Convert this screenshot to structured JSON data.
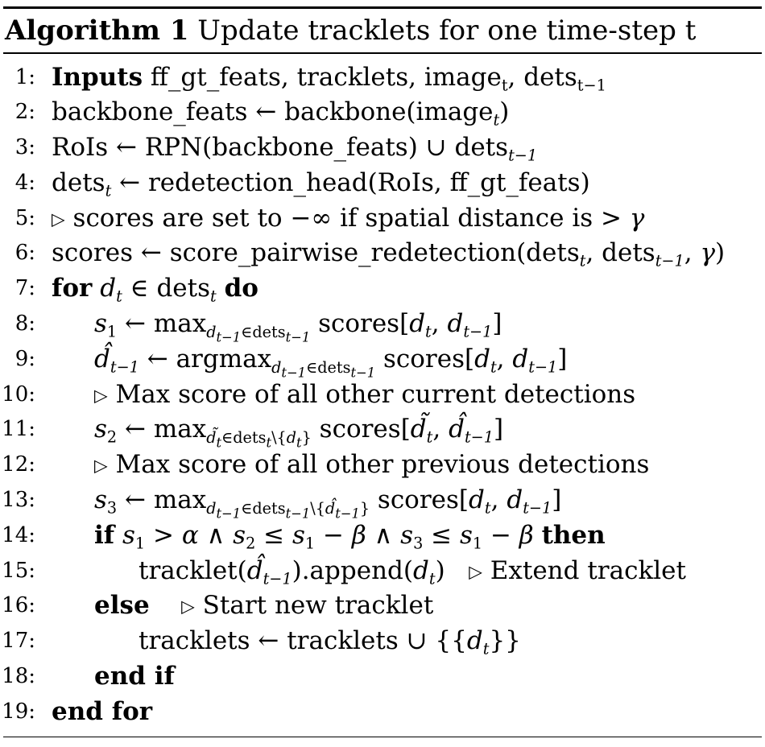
{
  "caption": {
    "label": "Algorithm 1",
    "title": "Update tracklets for one time-step t"
  },
  "lines": [
    {
      "num": "1:",
      "html": "<span class='kw'>Inputs</span> ff_gt_feats, tracklets, image<sub>t</sub>, dets<sub>t&minus;1</sub>"
    },
    {
      "num": "2:",
      "html": "backbone_feats &larr; backbone(image<sub class='m'>t</sub>)"
    },
    {
      "num": "3:",
      "html": "RoIs &larr; RPN(backbone_feats) &cup; dets<sub class='m'>t&minus;1</sub>"
    },
    {
      "num": "4:",
      "html": "dets<sub class='m'>t</sub> &larr; redetection_head(RoIs, ff_gt_feats)"
    },
    {
      "num": "5:",
      "html": "<span class='tri'>&#9655;</span> scores are set to &minus;&infin; if spatial distance is &gt; <span class='m'>&gamma;</span>"
    },
    {
      "num": "6:",
      "html": "scores &larr; score_pairwise_redetection(dets<sub class='m'>t</sub>, dets<sub class='m'>t&minus;1</sub>, <span class='m'>&gamma;</span>)"
    },
    {
      "num": "7:",
      "html": "<span class='kw'>for</span> <span class='m'>d<sub>t</sub></span> &isin; dets<sub class='m'>t</sub> <span class='kw'>do</span>"
    },
    {
      "num": "8:",
      "html": "<span class='m'>s</span><sub>1</sub> &larr; max<sub><span class='m'>d<sub>t&minus;1</sub></span>&isin;dets<sub class='m'>t&minus;1</sub></sub> scores[<span class='m'>d<sub>t</sub></span>, <span class='m'>d<sub>t&minus;1</sub></span>]"
    },
    {
      "num": "9:",
      "html": "<span class='m'>d&#770;<sub>t&minus;1</sub></span> &larr; argmax<sub><span class='m'>d<sub>t&minus;1</sub></span>&isin;dets<sub class='m'>t&minus;1</sub></sub> scores[<span class='m'>d<sub>t</sub></span>, <span class='m'>d<sub>t&minus;1</sub></span>]"
    },
    {
      "num": "10:",
      "html": "<span class='tri'>&#9655;</span> Max score of all other current detections"
    },
    {
      "num": "11:",
      "html": "<span class='m'>s</span><sub>2</sub> &larr; max<sub><span class='m'>d&#771;<sub>t</sub></span>&isin;dets<sub class='m'>t</sub>\\{<span class='m'>d<sub>t</sub></span>}</sub> scores[<span class='m'>d&#771;<sub>t</sub></span>, <span class='m'>d&#770;<sub>t&minus;1</sub></span>]"
    },
    {
      "num": "12:",
      "html": "<span class='tri'>&#9655;</span> Max score of all other previous detections"
    },
    {
      "num": "13:",
      "html": "<span class='m'>s</span><sub>3</sub> &larr; max<sub><span class='m'>d<sub>t&minus;1</sub></span>&isin;dets<sub class='m'>t&minus;1</sub>\\{<span class='m'>d&#770;<sub>t&minus;1</sub></span>}</sub> scores[<span class='m'>d<sub>t</sub></span>, <span class='m'>d<sub>t&minus;1</sub></span>]"
    },
    {
      "num": "14:",
      "html": "<span class='kw'>if</span> <span class='m'>s</span><sub>1</sub> &gt; <span class='m'>&alpha;</span> &and; <span class='m'>s</span><sub>2</sub> &le; <span class='m'>s</span><sub>1</sub> &minus; <span class='m'>&beta;</span> &and; <span class='m'>s</span><sub>3</sub> &le; <span class='m'>s</span><sub>1</sub> &minus; <span class='m'>&beta;</span> <span class='kw'>then</span>"
    },
    {
      "num": "15:",
      "html": "tracklet(<span class='m'>d&#770;<sub>t&minus;1</sub></span>).append(<span class='m'>d<sub>t</sub></span>) &nbsp; <span class='tri'>&#9655;</span> Extend tracklet"
    },
    {
      "num": "16:",
      "html": "<span class='kw'>else</span> &nbsp;&nbsp; <span class='tri'>&#9655;</span> Start new tracklet"
    },
    {
      "num": "17:",
      "html": "tracklets &larr; tracklets &cup; {{<span class='m'>d<sub>t</sub></span>}}"
    },
    {
      "num": "18:",
      "html": "<span class='kw'>end if</span>"
    },
    {
      "num": "19:",
      "html": "<span class='kw'>end for</span>"
    }
  ]
}
